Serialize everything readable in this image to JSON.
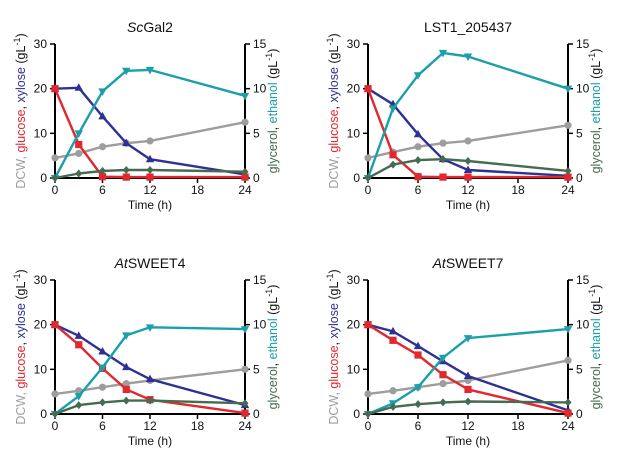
{
  "colors": {
    "glucose": "#e0282e",
    "xylose": "#2e3192",
    "dcw": "#9d9d9d",
    "ethanol": "#1aa0a8",
    "glycerol": "#456b52",
    "axis": "#000000"
  },
  "left_label": {
    "dcw": "DCW, ",
    "glucose": "glucose",
    "sep": ", ",
    "xylose": "xylose",
    "unit_open": " (gL",
    "unit_exp": "-1",
    "unit_close": ")"
  },
  "right_label": {
    "glycerol": "glycerol",
    "sep": ", ",
    "ethanol": "ethanol",
    "unit_open": " (gL",
    "unit_exp": "-1",
    "unit_close": ")"
  },
  "chart_data": [
    {
      "type": "line",
      "title_italic": "Sc",
      "title_rest": "Gal2",
      "xlabel": "Time (h)",
      "x_ticks": [
        0,
        6,
        12,
        18,
        24
      ],
      "xlim": [
        0,
        24
      ],
      "ylim_left": [
        0,
        30
      ],
      "y_ticks_left": [
        0,
        10,
        20,
        30
      ],
      "ylim_right": [
        0,
        15
      ],
      "y_ticks_right": [
        0,
        5,
        10,
        15
      ],
      "series": [
        {
          "key": "dcw",
          "axis": "left",
          "marker": "circle",
          "x": [
            0,
            3,
            6,
            9,
            12,
            24
          ],
          "y": [
            4.5,
            5.5,
            7,
            7.8,
            8.3,
            12.5
          ]
        },
        {
          "key": "xylose",
          "axis": "left",
          "marker": "triangle-up",
          "x": [
            0,
            3,
            6,
            9,
            12,
            24
          ],
          "y": [
            20,
            20.2,
            13.8,
            7.8,
            4.2,
            0.8
          ]
        },
        {
          "key": "glucose",
          "axis": "left",
          "marker": "square",
          "x": [
            0,
            3,
            6,
            9,
            12,
            24
          ],
          "y": [
            20,
            7.5,
            0.3,
            0.2,
            0.2,
            0.2
          ]
        },
        {
          "key": "ethanol",
          "axis": "right",
          "marker": "triangle-down",
          "x": [
            0,
            3,
            6,
            9,
            12,
            24
          ],
          "y": [
            0,
            5,
            9.7,
            12,
            12.1,
            9.2
          ]
        },
        {
          "key": "glycerol",
          "axis": "right",
          "marker": "diamond",
          "x": [
            0,
            3,
            6,
            9,
            12,
            24
          ],
          "y": [
            0,
            0.5,
            0.8,
            0.9,
            0.9,
            0.7
          ]
        }
      ]
    },
    {
      "type": "line",
      "title_italic": "",
      "title_rest": "LST1_205437",
      "xlabel": "Time (h)",
      "x_ticks": [
        0,
        6,
        12,
        18,
        24
      ],
      "xlim": [
        0,
        24
      ],
      "ylim_left": [
        0,
        30
      ],
      "y_ticks_left": [
        0,
        10,
        20,
        30
      ],
      "ylim_right": [
        0,
        15
      ],
      "y_ticks_right": [
        0,
        5,
        10,
        15
      ],
      "series": [
        {
          "key": "dcw",
          "axis": "left",
          "marker": "circle",
          "x": [
            0,
            3,
            6,
            9,
            12,
            24
          ],
          "y": [
            4.5,
            5.8,
            7,
            7.8,
            8.3,
            11.8
          ]
        },
        {
          "key": "xylose",
          "axis": "left",
          "marker": "triangle-up",
          "x": [
            0,
            3,
            6,
            9,
            12,
            24
          ],
          "y": [
            20,
            16.5,
            9.8,
            4.2,
            1.8,
            0.5
          ]
        },
        {
          "key": "glucose",
          "axis": "left",
          "marker": "square",
          "x": [
            0,
            3,
            6,
            9,
            12,
            24
          ],
          "y": [
            20,
            5.2,
            0.3,
            0.2,
            0.2,
            0.2
          ]
        },
        {
          "key": "ethanol",
          "axis": "right",
          "marker": "triangle-down",
          "x": [
            0,
            3,
            6,
            9,
            12,
            24
          ],
          "y": [
            0,
            7.8,
            11.5,
            14,
            13.6,
            10
          ]
        },
        {
          "key": "glycerol",
          "axis": "right",
          "marker": "diamond",
          "x": [
            0,
            3,
            6,
            9,
            12,
            24
          ],
          "y": [
            0,
            1.5,
            2,
            2.1,
            1.9,
            0.8
          ]
        }
      ]
    },
    {
      "type": "line",
      "title_italic": "At",
      "title_rest": "SWEET4",
      "xlabel": "Time (h)",
      "x_ticks": [
        0,
        6,
        12,
        18,
        24
      ],
      "xlim": [
        0,
        24
      ],
      "ylim_left": [
        0,
        30
      ],
      "y_ticks_left": [
        0,
        10,
        20,
        30
      ],
      "ylim_right": [
        0,
        15
      ],
      "y_ticks_right": [
        0,
        5,
        10,
        15
      ],
      "series": [
        {
          "key": "dcw",
          "axis": "left",
          "marker": "circle",
          "x": [
            0,
            3,
            6,
            9,
            12,
            24
          ],
          "y": [
            4.5,
            5.2,
            6,
            6.8,
            7.5,
            10
          ]
        },
        {
          "key": "xylose",
          "axis": "left",
          "marker": "triangle-up",
          "x": [
            0,
            3,
            6,
            9,
            12,
            24
          ],
          "y": [
            20,
            17.5,
            14,
            10.5,
            7.8,
            2
          ]
        },
        {
          "key": "glucose",
          "axis": "left",
          "marker": "square",
          "x": [
            0,
            3,
            6,
            9,
            12,
            24
          ],
          "y": [
            20,
            15.5,
            10.2,
            5.5,
            3.2,
            0.2
          ]
        },
        {
          "key": "ethanol",
          "axis": "right",
          "marker": "triangle-down",
          "x": [
            0,
            3,
            6,
            9,
            12,
            24
          ],
          "y": [
            0,
            2,
            5.2,
            8.8,
            9.7,
            9.5
          ]
        },
        {
          "key": "glycerol",
          "axis": "right",
          "marker": "diamond",
          "x": [
            0,
            3,
            6,
            9,
            12,
            24
          ],
          "y": [
            0,
            1,
            1.3,
            1.5,
            1.5,
            1.2
          ]
        }
      ]
    },
    {
      "type": "line",
      "title_italic": "At",
      "title_rest": "SWEET7",
      "xlabel": "Time (h)",
      "x_ticks": [
        0,
        6,
        12,
        18,
        24
      ],
      "xlim": [
        0,
        24
      ],
      "ylim_left": [
        0,
        30
      ],
      "y_ticks_left": [
        0,
        10,
        20,
        30
      ],
      "ylim_right": [
        0,
        15
      ],
      "y_ticks_right": [
        0,
        5,
        10,
        15
      ],
      "series": [
        {
          "key": "dcw",
          "axis": "left",
          "marker": "circle",
          "x": [
            0,
            3,
            6,
            9,
            12,
            24
          ],
          "y": [
            4.5,
            5.2,
            6,
            6.8,
            7.5,
            12
          ]
        },
        {
          "key": "xylose",
          "axis": "left",
          "marker": "triangle-up",
          "x": [
            0,
            3,
            6,
            9,
            12,
            24
          ],
          "y": [
            20,
            18.5,
            15.2,
            11.8,
            8.5,
            0.8
          ]
        },
        {
          "key": "glucose",
          "axis": "left",
          "marker": "square",
          "x": [
            0,
            3,
            6,
            9,
            12,
            24
          ],
          "y": [
            20,
            16.5,
            13.2,
            8.8,
            5.5,
            0.2
          ]
        },
        {
          "key": "ethanol",
          "axis": "right",
          "marker": "triangle-down",
          "x": [
            0,
            3,
            6,
            9,
            12,
            24
          ],
          "y": [
            0,
            1.2,
            3,
            6.3,
            8.5,
            9.5
          ]
        },
        {
          "key": "glycerol",
          "axis": "right",
          "marker": "diamond",
          "x": [
            0,
            3,
            6,
            9,
            12,
            24
          ],
          "y": [
            0,
            0.8,
            1.1,
            1.3,
            1.4,
            1.3
          ]
        }
      ]
    }
  ]
}
